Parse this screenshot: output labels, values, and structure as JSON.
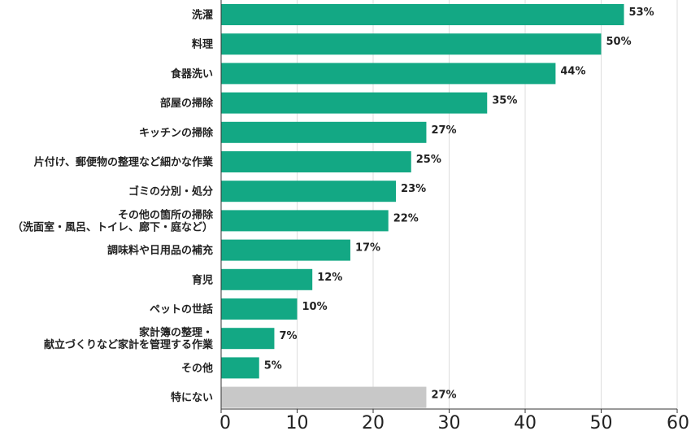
{
  "chart_data": {
    "type": "bar",
    "orientation": "horizontal",
    "categories": [
      [
        "洗濯"
      ],
      [
        "料理"
      ],
      [
        "食器洗い"
      ],
      [
        "部屋の掃除"
      ],
      [
        "キッチンの掃除"
      ],
      [
        "片付け、郵便物の整理など細かな作業"
      ],
      [
        "ゴミの分別・処分"
      ],
      [
        "その他の箇所の掃除",
        "（洗面室・風呂、トイレ、廊下・庭など）"
      ],
      [
        "調味料や日用品の補充"
      ],
      [
        "育児"
      ],
      [
        "ペットの世話"
      ],
      [
        "家計簿の整理・",
        "献立づくりなど家計を管理する作業"
      ],
      [
        "その他"
      ],
      [
        "特にない"
      ]
    ],
    "values": [
      53,
      50,
      44,
      35,
      27,
      25,
      23,
      22,
      17,
      12,
      10,
      7,
      5,
      27
    ],
    "value_labels": [
      "53%",
      "50%",
      "44%",
      "35%",
      "27%",
      "25%",
      "23%",
      "22%",
      "17%",
      "12%",
      "10%",
      "7%",
      "5%",
      "27%"
    ],
    "bar_colors": [
      "#13a884",
      "#13a884",
      "#13a884",
      "#13a884",
      "#13a884",
      "#13a884",
      "#13a884",
      "#13a884",
      "#13a884",
      "#13a884",
      "#13a884",
      "#13a884",
      "#13a884",
      "#c8c8c8"
    ],
    "xlim": [
      0,
      60
    ],
    "xticks": [
      "0",
      "10",
      "20",
      "30",
      "40",
      "50",
      "60"
    ],
    "grid": false,
    "title": "",
    "xlabel": "",
    "ylabel": ""
  },
  "colors": {
    "bar": "#13a884",
    "bar_none": "#c8c8c8",
    "gridline": "#dddddd",
    "axis": "#333333"
  }
}
